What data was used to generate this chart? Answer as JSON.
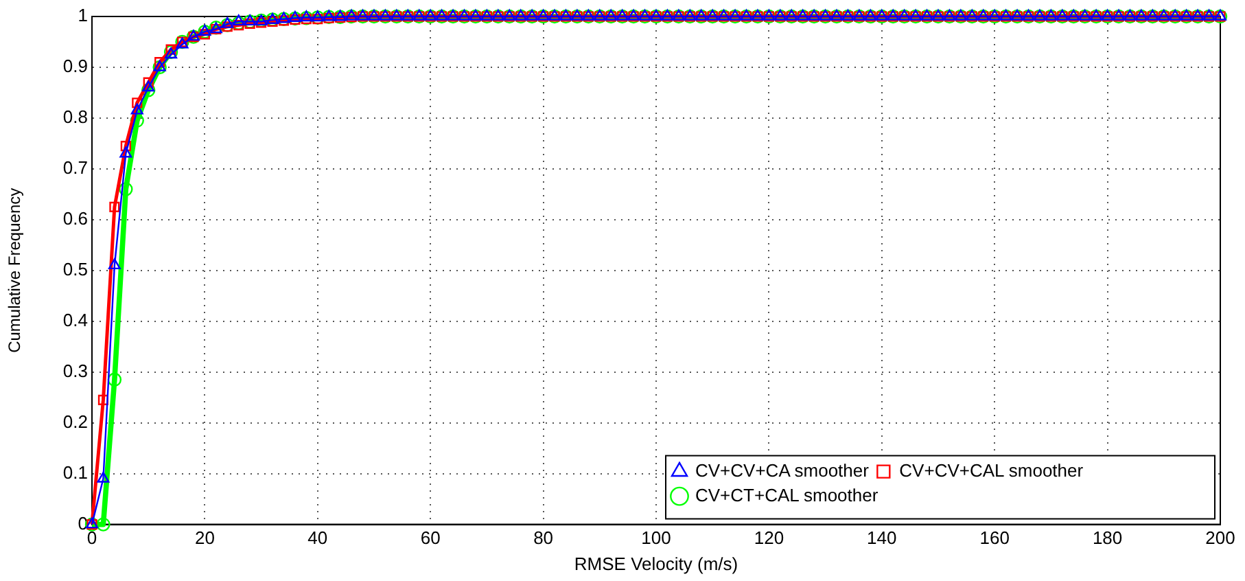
{
  "chart_data": {
    "type": "line",
    "xlabel": "RMSE Velocity (m/s)",
    "ylabel": "Cumulative Frequency",
    "x": [
      0,
      2,
      4,
      6,
      8,
      10,
      12,
      14,
      16,
      18,
      20,
      22,
      24,
      26,
      28,
      30,
      32,
      34,
      36,
      38,
      40,
      42,
      44,
      46,
      48,
      50,
      52,
      54,
      56,
      58,
      60,
      62,
      64,
      66,
      68,
      70,
      72,
      74,
      76,
      78,
      80,
      82,
      84,
      86,
      88,
      90,
      92,
      94,
      96,
      98,
      100,
      102,
      104,
      106,
      108,
      110,
      112,
      114,
      116,
      118,
      120,
      122,
      124,
      126,
      128,
      130,
      132,
      134,
      136,
      138,
      140,
      142,
      144,
      146,
      148,
      150,
      152,
      154,
      156,
      158,
      160,
      162,
      164,
      166,
      168,
      170,
      172,
      174,
      176,
      178,
      180,
      182,
      184,
      186,
      188,
      190,
      192,
      194,
      196,
      198,
      200
    ],
    "series": [
      {
        "name": "CV+CV+CA smoother",
        "color": "#0000ff",
        "marker": "triangle",
        "values": [
          0,
          0.09,
          0.51,
          0.73,
          0.815,
          0.86,
          0.9,
          0.925,
          0.945,
          0.96,
          0.97,
          0.975,
          0.985,
          0.99,
          0.99,
          0.99,
          0.993,
          0.995,
          0.997,
          0.998,
          0.998,
          0.999,
          0.999,
          1,
          1,
          1,
          1,
          1,
          1,
          1,
          1,
          1,
          1,
          1,
          1,
          1,
          1,
          1,
          1,
          1,
          1,
          1,
          1,
          1,
          1,
          1,
          1,
          1,
          1,
          1,
          1,
          1,
          1,
          1,
          1,
          1,
          1,
          1,
          1,
          1,
          1,
          1,
          1,
          1,
          1,
          1,
          1,
          1,
          1,
          1,
          1,
          1,
          1,
          1,
          1,
          1,
          1,
          1,
          1,
          1,
          1,
          1,
          1,
          1,
          1,
          1,
          1,
          1,
          1,
          1,
          1,
          1,
          1,
          1,
          1,
          1,
          1,
          1,
          1,
          1,
          1
        ]
      },
      {
        "name": "CV+CV+CAL smoother",
        "color": "#ff0000",
        "marker": "square",
        "values": [
          0,
          0.245,
          0.625,
          0.745,
          0.83,
          0.87,
          0.91,
          0.935,
          0.95,
          0.96,
          0.965,
          0.975,
          0.98,
          0.983,
          0.986,
          0.988,
          0.99,
          0.992,
          0.994,
          0.995,
          0.995,
          0.997,
          0.998,
          0.999,
          1,
          1,
          1,
          1,
          1,
          1,
          1,
          1,
          1,
          1,
          1,
          1,
          1,
          1,
          1,
          1,
          1,
          1,
          1,
          1,
          1,
          1,
          1,
          1,
          1,
          1,
          1,
          1,
          1,
          1,
          1,
          1,
          1,
          1,
          1,
          1,
          1,
          1,
          1,
          1,
          1,
          1,
          1,
          1,
          1,
          1,
          1,
          1,
          1,
          1,
          1,
          1,
          1,
          1,
          1,
          1,
          1,
          1,
          1,
          1,
          1,
          1,
          1,
          1,
          1,
          1,
          1,
          1,
          1,
          1,
          1,
          1,
          1,
          1,
          1,
          1,
          1
        ]
      },
      {
        "name": "CV+CT+CAL smoother",
        "color": "#00ff00",
        "marker": "circle",
        "values": [
          0,
          0,
          0.285,
          0.66,
          0.795,
          0.855,
          0.9,
          0.93,
          0.95,
          0.96,
          0.97,
          0.978,
          0.983,
          0.987,
          0.99,
          0.992,
          0.994,
          0.995,
          0.996,
          0.997,
          0.998,
          0.999,
          0.999,
          1,
          1,
          1,
          1,
          1,
          1,
          1,
          1,
          1,
          1,
          1,
          1,
          1,
          1,
          1,
          1,
          1,
          1,
          1,
          1,
          1,
          1,
          1,
          1,
          1,
          1,
          1,
          1,
          1,
          1,
          1,
          1,
          1,
          1,
          1,
          1,
          1,
          1,
          1,
          1,
          1,
          1,
          1,
          1,
          1,
          1,
          1,
          1,
          1,
          1,
          1,
          1,
          1,
          1,
          1,
          1,
          1,
          1,
          1,
          1,
          1,
          1,
          1,
          1,
          1,
          1,
          1,
          1,
          1,
          1,
          1,
          1,
          1,
          1,
          1,
          1,
          1,
          1
        ]
      }
    ],
    "xlim": [
      0,
      200
    ],
    "xticks": [
      0,
      20,
      40,
      60,
      80,
      100,
      120,
      140,
      160,
      180,
      200
    ],
    "ylim": [
      0,
      1
    ],
    "yticks": [
      0,
      0.1,
      0.2,
      0.3,
      0.4,
      0.5,
      0.6,
      0.7,
      0.8,
      0.9,
      1
    ],
    "grid": true,
    "legend": "bottom right",
    "line_style": "solid"
  }
}
